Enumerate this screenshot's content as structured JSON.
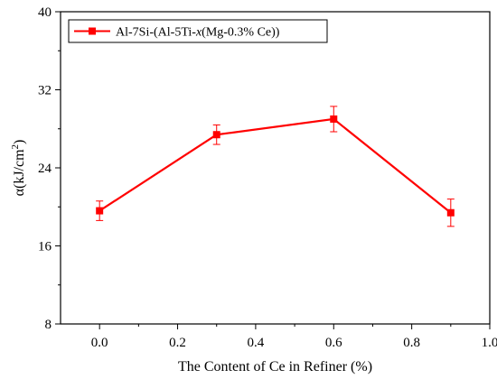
{
  "chart_data": {
    "type": "line",
    "xlabel": "The Content of Ce in Refiner (%)",
    "ylabel": {
      "base": "α(kJ/cm",
      "sup": "2",
      "end": ")"
    },
    "xlim": [
      -0.1,
      1.0
    ],
    "ylim": [
      8,
      40
    ],
    "xticks": [
      "0.0",
      "0.2",
      "0.4",
      "0.6",
      "0.8",
      "1.0"
    ],
    "yticks": [
      "8",
      "16",
      "24",
      "32",
      "40"
    ],
    "grid": false,
    "legend_position": "top-left",
    "series": [
      {
        "name": {
          "pre": "Al-7Si-(Al-5Ti-",
          "italic": "x",
          "post": "(Mg-0.3% Ce))"
        },
        "color": "#ff0000",
        "marker": "square",
        "x": [
          0.0,
          0.3,
          0.6,
          0.9
        ],
        "y": [
          19.6,
          27.4,
          29.0,
          19.4
        ],
        "error": [
          1.0,
          1.0,
          1.3,
          1.4
        ]
      }
    ]
  }
}
